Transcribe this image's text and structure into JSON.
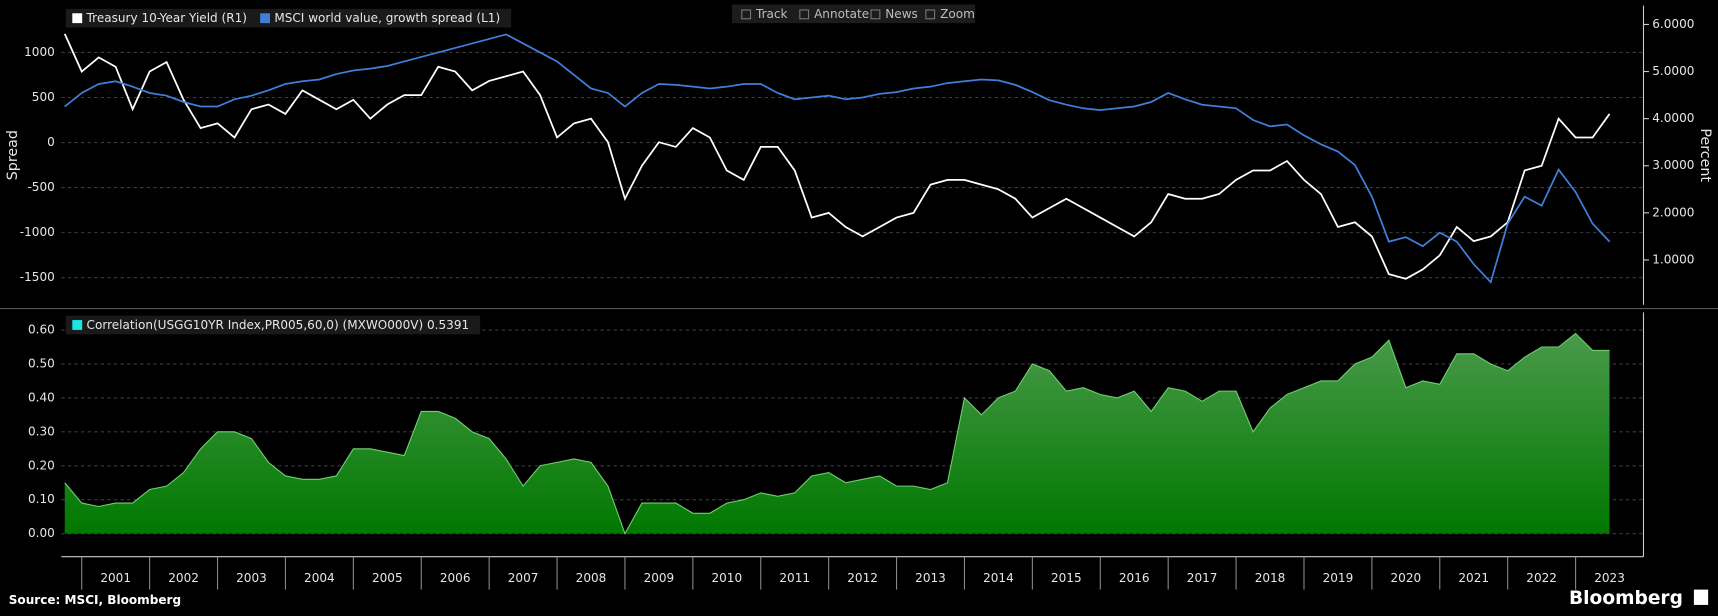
{
  "toolbar": [
    "Track",
    "Annotate",
    "News",
    "Zoom"
  ],
  "source": "Source: MSCI, Bloomberg",
  "brand": "Bloomberg",
  "chart_data": [
    {
      "type": "line",
      "ylabel": "Spread",
      "y2label": "Percent",
      "xlim": [
        2000.7,
        2024.0
      ],
      "ylim": [
        -1800,
        1520
      ],
      "yticks": [
        -1500,
        -1000,
        -500,
        0,
        500,
        1000
      ],
      "y2lim": [
        0.05,
        6.4
      ],
      "y2ticks": [
        {
          "value": 1,
          "label": "1.0000"
        },
        {
          "value": 2,
          "label": "2.0000"
        },
        {
          "value": 3,
          "label": "3.0000"
        },
        {
          "value": 4,
          "label": "4.0000"
        },
        {
          "value": 5,
          "label": "5.0000"
        },
        {
          "value": 6,
          "label": "6.0000"
        }
      ],
      "grid": true,
      "x": [
        2000.75,
        2001.0,
        2001.25,
        2001.5,
        2001.75,
        2002.0,
        2002.25,
        2002.5,
        2002.75,
        2003.0,
        2003.25,
        2003.5,
        2003.75,
        2004.0,
        2004.25,
        2004.5,
        2004.75,
        2005.0,
        2005.25,
        2005.5,
        2005.75,
        2006.0,
        2006.25,
        2006.5,
        2006.75,
        2007.0,
        2007.25,
        2007.5,
        2007.75,
        2008.0,
        2008.25,
        2008.5,
        2008.75,
        2009.0,
        2009.25,
        2009.5,
        2009.75,
        2010.0,
        2010.25,
        2010.5,
        2010.75,
        2011.0,
        2011.25,
        2011.5,
        2011.75,
        2012.0,
        2012.25,
        2012.5,
        2012.75,
        2013.0,
        2013.25,
        2013.5,
        2013.75,
        2014.0,
        2014.25,
        2014.5,
        2014.75,
        2015.0,
        2015.25,
        2015.5,
        2015.75,
        2016.0,
        2016.25,
        2016.5,
        2016.75,
        2017.0,
        2017.25,
        2017.5,
        2017.75,
        2018.0,
        2018.25,
        2018.5,
        2018.75,
        2019.0,
        2019.25,
        2019.5,
        2019.75,
        2020.0,
        2020.25,
        2020.5,
        2020.75,
        2021.0,
        2021.25,
        2021.5,
        2021.75,
        2022.0,
        2022.25,
        2022.5,
        2022.75,
        2023.0,
        2023.25,
        2023.5
      ],
      "series": [
        {
          "name": "Treasury 10-Year Yield (R1)",
          "color": "#ffffff",
          "axis": "y2",
          "values": [
            5.8,
            5.0,
            5.3,
            5.1,
            4.2,
            5.0,
            5.2,
            4.4,
            3.8,
            3.9,
            3.6,
            4.2,
            4.3,
            4.1,
            4.6,
            4.4,
            4.2,
            4.4,
            4.0,
            4.3,
            4.5,
            4.5,
            5.1,
            5.0,
            4.6,
            4.8,
            4.9,
            5.0,
            4.5,
            3.6,
            3.9,
            4.0,
            3.5,
            2.3,
            3.0,
            3.5,
            3.4,
            3.8,
            3.6,
            2.9,
            2.7,
            3.4,
            3.4,
            2.9,
            1.9,
            2.0,
            1.7,
            1.5,
            1.7,
            1.9,
            2.0,
            2.6,
            2.7,
            2.7,
            2.6,
            2.5,
            2.3,
            1.9,
            2.1,
            2.3,
            2.1,
            1.9,
            1.7,
            1.5,
            1.8,
            2.4,
            2.3,
            2.3,
            2.4,
            2.7,
            2.9,
            2.9,
            3.1,
            2.7,
            2.4,
            1.7,
            1.8,
            1.5,
            0.7,
            0.6,
            0.8,
            1.1,
            1.7,
            1.4,
            1.5,
            1.8,
            2.9,
            3.0,
            4.0,
            3.6,
            3.6,
            4.1
          ]
        },
        {
          "name": "MSCI world value, growth spread (L1)",
          "color": "#3f7fd9",
          "axis": "y",
          "values": [
            400,
            550,
            650,
            680,
            620,
            550,
            520,
            450,
            400,
            400,
            480,
            520,
            580,
            650,
            680,
            700,
            760,
            800,
            820,
            850,
            900,
            950,
            1000,
            1050,
            1100,
            1150,
            1200,
            1100,
            1000,
            900,
            750,
            600,
            550,
            400,
            550,
            650,
            640,
            620,
            600,
            620,
            650,
            650,
            550,
            480,
            500,
            520,
            480,
            500,
            540,
            560,
            600,
            620,
            660,
            680,
            700,
            690,
            640,
            560,
            470,
            420,
            380,
            360,
            380,
            400,
            450,
            550,
            480,
            420,
            400,
            380,
            250,
            180,
            200,
            80,
            -20,
            -100,
            -250,
            -600,
            -1100,
            -1050,
            -1150,
            -1000,
            -1100,
            -1350,
            -1550,
            -900,
            -600,
            -700,
            -300,
            -550,
            -900,
            -1100
          ]
        }
      ]
    },
    {
      "type": "area",
      "xlim": [
        2000.7,
        2024.0
      ],
      "ylim": [
        -0.068,
        0.652
      ],
      "yticks": [
        {
          "value": 0,
          "label": "0.00"
        },
        {
          "value": 0.1,
          "label": "0.10"
        },
        {
          "value": 0.2,
          "label": "0.20"
        },
        {
          "value": 0.3,
          "label": "0.30"
        },
        {
          "value": 0.4,
          "label": "0.40"
        },
        {
          "value": 0.5,
          "label": "0.50"
        },
        {
          "value": 0.6,
          "label": "0.60"
        }
      ],
      "grid": true,
      "xticks": [
        2001,
        2002,
        2003,
        2004,
        2005,
        2006,
        2007,
        2008,
        2009,
        2010,
        2011,
        2012,
        2013,
        2014,
        2015,
        2016,
        2017,
        2018,
        2019,
        2020,
        2021,
        2022,
        2023
      ],
      "x": [
        2000.75,
        2001.0,
        2001.25,
        2001.5,
        2001.75,
        2002.0,
        2002.25,
        2002.5,
        2002.75,
        2003.0,
        2003.25,
        2003.5,
        2003.75,
        2004.0,
        2004.25,
        2004.5,
        2004.75,
        2005.0,
        2005.25,
        2005.5,
        2005.75,
        2006.0,
        2006.25,
        2006.5,
        2006.75,
        2007.0,
        2007.25,
        2007.5,
        2007.75,
        2008.0,
        2008.25,
        2008.5,
        2008.75,
        2009.0,
        2009.25,
        2009.5,
        2009.75,
        2010.0,
        2010.25,
        2010.5,
        2010.75,
        2011.0,
        2011.25,
        2011.5,
        2011.75,
        2012.0,
        2012.25,
        2012.5,
        2012.75,
        2013.0,
        2013.25,
        2013.5,
        2013.75,
        2014.0,
        2014.25,
        2014.5,
        2014.75,
        2015.0,
        2015.25,
        2015.5,
        2015.75,
        2016.0,
        2016.25,
        2016.5,
        2016.75,
        2017.0,
        2017.25,
        2017.5,
        2017.75,
        2018.0,
        2018.25,
        2018.5,
        2018.75,
        2019.0,
        2019.25,
        2019.5,
        2019.75,
        2020.0,
        2020.25,
        2020.5,
        2020.75,
        2021.0,
        2021.25,
        2021.5,
        2021.75,
        2022.0,
        2022.25,
        2022.5,
        2022.75,
        2023.0,
        2023.25,
        2023.5
      ],
      "series": [
        {
          "name": "Correlation(USGG10YR Index,PR005,60,0) (MXWO000V) 0.5391",
          "color": "#1f8f1f",
          "marker_color": "#19e6e6",
          "values": [
            0.15,
            0.09,
            0.08,
            0.09,
            0.09,
            0.13,
            0.14,
            0.18,
            0.25,
            0.3,
            0.3,
            0.28,
            0.21,
            0.17,
            0.16,
            0.16,
            0.17,
            0.25,
            0.25,
            0.24,
            0.23,
            0.36,
            0.36,
            0.34,
            0.3,
            0.28,
            0.22,
            0.14,
            0.2,
            0.21,
            0.22,
            0.21,
            0.14,
            0.0,
            0.09,
            0.09,
            0.09,
            0.06,
            0.06,
            0.09,
            0.1,
            0.12,
            0.11,
            0.12,
            0.17,
            0.18,
            0.15,
            0.16,
            0.17,
            0.14,
            0.14,
            0.13,
            0.15,
            0.4,
            0.35,
            0.4,
            0.42,
            0.5,
            0.48,
            0.42,
            0.43,
            0.41,
            0.4,
            0.42,
            0.36,
            0.43,
            0.42,
            0.39,
            0.42,
            0.42,
            0.3,
            0.37,
            0.41,
            0.43,
            0.45,
            0.45,
            0.5,
            0.52,
            0.57,
            0.43,
            0.45,
            0.44,
            0.53,
            0.53,
            0.5,
            0.48,
            0.52,
            0.55,
            0.55,
            0.59,
            0.54,
            0.54
          ]
        }
      ]
    }
  ]
}
